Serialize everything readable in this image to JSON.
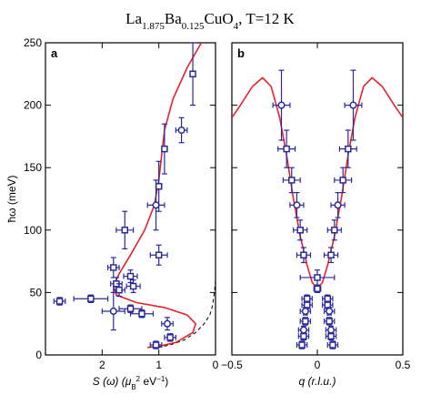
{
  "figure": {
    "title_main": "La",
    "title_sub1": "1.875",
    "title_mid": "Ba",
    "title_sub2": "0.125",
    "title_mid2": "CuO",
    "title_sub3": "4",
    "title_tail": ", T=12 K"
  },
  "colors": {
    "fit_curve": "#e8222a",
    "data_marker": "#2a2a9c",
    "dashed_curve": "#000000",
    "background": "#ffffff"
  },
  "chart_data": [
    {
      "type": "scatter",
      "panel_label": "a",
      "xlabel_parts": {
        "main": "S (ω)  (μ",
        "sub": "B",
        "sup": "2",
        "tail": " eV",
        "tail_sup": "−1",
        "close": ")"
      },
      "ylabel": "ħω  (meV)",
      "xlim": [
        3,
        0
      ],
      "ylim": [
        0,
        250
      ],
      "xticks": [
        2,
        1,
        0
      ],
      "yticks": [
        0,
        50,
        100,
        150,
        200,
        250
      ],
      "x_reversed": true,
      "series": [
        {
          "marker": "square",
          "points": [
            {
              "x": 0.4,
              "y": 225,
              "yerr": 25
            },
            {
              "x": 0.9,
              "y": 165,
              "yerr": 20
            },
            {
              "x": 1.0,
              "y": 135,
              "yerr": 20,
              "xerr": 0.05
            },
            {
              "x": 1.6,
              "y": 100,
              "yerr": 15,
              "xerr": 0.15
            },
            {
              "x": 1.0,
              "y": 80,
              "yerr": 8,
              "xerr": 0.15
            },
            {
              "x": 1.8,
              "y": 70,
              "yerr": 8,
              "xerr": 0.1
            },
            {
              "x": 1.5,
              "y": 63,
              "yerr": 5,
              "xerr": 0.12
            },
            {
              "x": 1.75,
              "y": 57,
              "yerr": 5,
              "xerr": 0.1
            },
            {
              "x": 1.7,
              "y": 52,
              "yerr": 5,
              "xerr": 0.1
            },
            {
              "x": 1.45,
              "y": 55,
              "yerr": 5,
              "xerr": 0.12
            },
            {
              "x": 2.75,
              "y": 43,
              "yerr": 3,
              "xerr": 0.1
            },
            {
              "x": 2.2,
              "y": 45,
              "yerr": 3,
              "xerr": 0.3
            },
            {
              "x": 1.5,
              "y": 37,
              "yerr": 3,
              "xerr": 0.2
            },
            {
              "x": 1.3,
              "y": 33,
              "yerr": 3,
              "xerr": 0.2
            },
            {
              "x": 0.8,
              "y": 14,
              "yerr": 3,
              "xerr": 0.1
            },
            {
              "x": 1.05,
              "y": 8,
              "yerr": 3,
              "xerr": 0.1
            }
          ]
        },
        {
          "marker": "circle",
          "points": [
            {
              "x": 0.6,
              "y": 180,
              "yerr": 10,
              "xerr": 0.1
            },
            {
              "x": 1.05,
              "y": 120,
              "yerr": 20,
              "xerr": 0.15
            },
            {
              "x": 1.8,
              "y": 35,
              "yerr": 15,
              "xerr": 0.2
            },
            {
              "x": 0.85,
              "y": 25,
              "yerr": 5,
              "xerr": 0.1
            }
          ]
        }
      ],
      "fit_curve": [
        [
          0.25,
          250
        ],
        [
          0.5,
          230
        ],
        [
          0.75,
          205
        ],
        [
          0.9,
          180
        ],
        [
          0.95,
          160
        ],
        [
          1.0,
          140
        ],
        [
          1.08,
          120
        ],
        [
          1.25,
          100
        ],
        [
          1.5,
          80
        ],
        [
          1.7,
          65
        ],
        [
          1.8,
          55
        ],
        [
          1.75,
          48
        ],
        [
          1.4,
          42
        ],
        [
          0.9,
          38
        ],
        [
          0.5,
          32
        ],
        [
          0.35,
          25
        ],
        [
          0.4,
          18
        ],
        [
          0.7,
          10
        ],
        [
          1.0,
          7
        ],
        [
          1.2,
          6
        ]
      ],
      "dashed_curve": [
        [
          0.0,
          60
        ],
        [
          0.02,
          50
        ],
        [
          0.05,
          40
        ],
        [
          0.1,
          32
        ],
        [
          0.2,
          25
        ],
        [
          0.35,
          18
        ],
        [
          0.55,
          12
        ],
        [
          0.8,
          8
        ],
        [
          1.1,
          5
        ]
      ]
    },
    {
      "type": "scatter",
      "panel_label": "b",
      "xlabel_parts": {
        "main": "q (r.l.u.)"
      },
      "xlim": [
        -0.5,
        0.5
      ],
      "ylim": [
        0,
        250
      ],
      "xticks": [
        -0.5,
        0,
        0.5
      ],
      "xtick_labels": [
        "−0.5",
        "0",
        "0.5"
      ],
      "series": [
        {
          "marker": "circle",
          "points": [
            {
              "x": -0.21,
              "y": 200,
              "yerr": 28,
              "xerr": 0.05
            },
            {
              "x": 0.21,
              "y": 200,
              "yerr": 28,
              "xerr": 0.05
            },
            {
              "x": -0.12,
              "y": 120,
              "yerr": 10,
              "xerr": 0.04
            },
            {
              "x": 0.12,
              "y": 120,
              "yerr": 10,
              "xerr": 0.04
            }
          ]
        },
        {
          "marker": "square",
          "points": [
            {
              "x": -0.18,
              "y": 165,
              "yerr": 15,
              "xerr": 0.05
            },
            {
              "x": 0.18,
              "y": 165,
              "yerr": 15,
              "xerr": 0.05
            },
            {
              "x": -0.15,
              "y": 140,
              "yerr": 10,
              "xerr": 0.05
            },
            {
              "x": 0.15,
              "y": 140,
              "yerr": 10,
              "xerr": 0.05
            },
            {
              "x": -0.1,
              "y": 100,
              "yerr": 8,
              "xerr": 0.04
            },
            {
              "x": 0.1,
              "y": 100,
              "yerr": 8,
              "xerr": 0.04
            },
            {
              "x": -0.08,
              "y": 80,
              "yerr": 6,
              "xerr": 0.04
            },
            {
              "x": 0.08,
              "y": 80,
              "yerr": 6,
              "xerr": 0.04
            },
            {
              "x": 0.0,
              "y": 62,
              "yerr": 6,
              "xerr": 0.1
            },
            {
              "x": 0.0,
              "y": 53,
              "yerr": 3,
              "xerr": 0.02
            },
            {
              "x": -0.06,
              "y": 45,
              "yerr": 3,
              "xerr": 0.03
            },
            {
              "x": 0.06,
              "y": 45,
              "yerr": 3,
              "xerr": 0.03
            },
            {
              "x": -0.06,
              "y": 40,
              "yerr": 3,
              "xerr": 0.03
            },
            {
              "x": 0.06,
              "y": 40,
              "yerr": 3,
              "xerr": 0.03
            },
            {
              "x": -0.07,
              "y": 27,
              "yerr": 3,
              "xerr": 0.03
            },
            {
              "x": 0.07,
              "y": 27,
              "yerr": 3,
              "xerr": 0.03
            },
            {
              "x": -0.08,
              "y": 15,
              "yerr": 3,
              "xerr": 0.03
            },
            {
              "x": 0.08,
              "y": 15,
              "yerr": 3,
              "xerr": 0.03
            },
            {
              "x": -0.09,
              "y": 8,
              "yerr": 3,
              "xerr": 0.03
            },
            {
              "x": 0.09,
              "y": 8,
              "yerr": 3,
              "xerr": 0.03
            }
          ]
        },
        {
          "marker": "circle",
          "points": [
            {
              "x": -0.07,
              "y": 35,
              "yerr": 3,
              "xerr": 0.03
            },
            {
              "x": 0.07,
              "y": 35,
              "yerr": 3,
              "xerr": 0.03
            },
            {
              "x": -0.08,
              "y": 20,
              "yerr": 3,
              "xerr": 0.03
            },
            {
              "x": 0.08,
              "y": 20,
              "yerr": 3,
              "xerr": 0.03
            }
          ]
        }
      ],
      "fit_curve": [
        [
          -0.5,
          190
        ],
        [
          -0.45,
          200
        ],
        [
          -0.38,
          215
        ],
        [
          -0.32,
          222
        ],
        [
          -0.27,
          215
        ],
        [
          -0.22,
          190
        ],
        [
          -0.18,
          160
        ],
        [
          -0.14,
          125
        ],
        [
          -0.1,
          95
        ],
        [
          -0.06,
          72
        ],
        [
          -0.03,
          58
        ],
        [
          0.0,
          53
        ],
        [
          0.03,
          58
        ],
        [
          0.06,
          72
        ],
        [
          0.1,
          95
        ],
        [
          0.14,
          125
        ],
        [
          0.18,
          160
        ],
        [
          0.22,
          190
        ],
        [
          0.27,
          215
        ],
        [
          0.32,
          222
        ],
        [
          0.38,
          215
        ],
        [
          0.45,
          200
        ],
        [
          0.5,
          190
        ]
      ]
    }
  ]
}
